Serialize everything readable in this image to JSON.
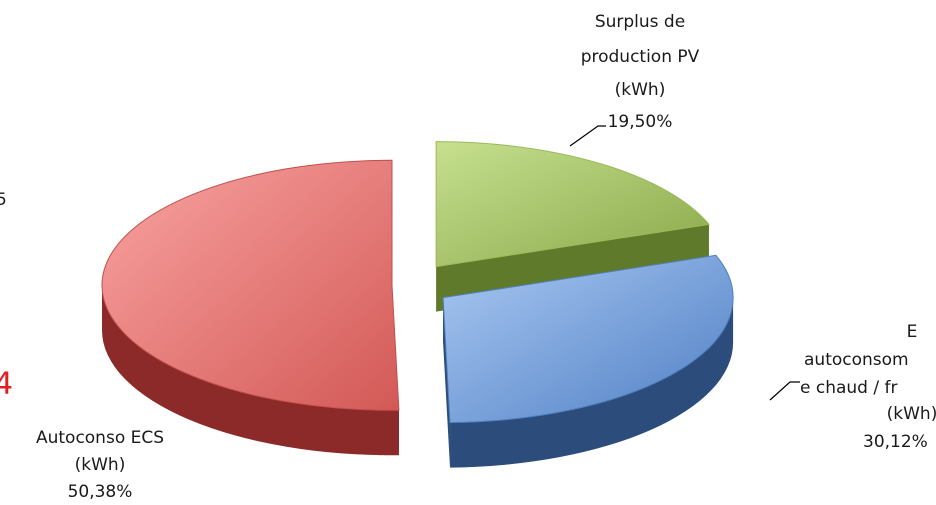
{
  "chart_data": {
    "type": "pie3d",
    "categories": [
      [
        "Surplus de",
        "production PV",
        "(kWh)"
      ],
      [
        "E",
        "autoconsom",
        "e chaud / fr",
        "(kWh)"
      ],
      [
        "Autoconso ECS",
        "(kWh)"
      ]
    ],
    "values": [
      19.5,
      30.12,
      50.38
    ],
    "value_labels": [
      "19,50%",
      "30,12%",
      "50,38%"
    ],
    "colors": [
      "#9bbb59",
      "#4f81bd",
      "#c0504d"
    ],
    "edge_fragments": [
      "5",
      "4"
    ]
  }
}
